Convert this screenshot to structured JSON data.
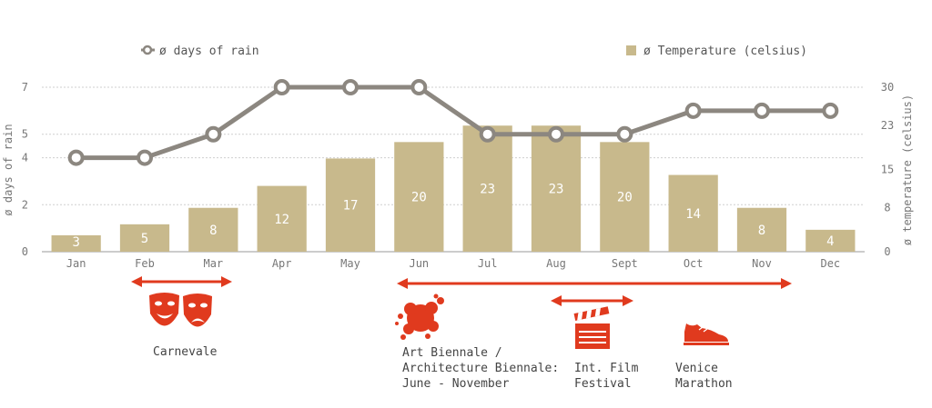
{
  "chart_data": {
    "type": "bar",
    "categories": [
      "Jan",
      "Feb",
      "Mar",
      "Apr",
      "May",
      "Jun",
      "Jul",
      "Aug",
      "Sept",
      "Oct",
      "Nov",
      "Dec"
    ],
    "series": [
      {
        "name": "ø Temperature (celsius)",
        "type": "bar",
        "axis": "right",
        "values": [
          3,
          5,
          8,
          12,
          17,
          20,
          23,
          23,
          20,
          14,
          8,
          4
        ]
      },
      {
        "name": "ø days of rain",
        "type": "line",
        "axis": "left",
        "values": [
          4,
          4,
          5,
          7,
          7,
          7,
          5,
          5,
          5,
          6,
          6,
          6
        ]
      }
    ],
    "ylabel": "ø days of rain",
    "y2label": "ø temperature (celsius)",
    "ylim": [
      0,
      7
    ],
    "y2lim": [
      0,
      30
    ],
    "yticks": [
      0,
      2,
      4,
      5,
      7
    ],
    "y2ticks": [
      0,
      8,
      15,
      23,
      30
    ],
    "grid": true,
    "legend": "top"
  },
  "legend": {
    "rain": "ø days of rain",
    "temp": "ø Temperature (celsius)"
  },
  "colors": {
    "bar": "#c8b98c",
    "line": "#8c8780",
    "accent": "#e03a1e",
    "grid": "#cfcfcf",
    "text": "#555555"
  },
  "events": [
    {
      "icon": "theater-masks-icon",
      "from": "Feb",
      "to": "Mar",
      "lines": [
        "Carnevale"
      ]
    },
    {
      "icon": "paint-splash-icon",
      "from": "Jun",
      "to": "Nov",
      "lines": [
        "Art Biennale /",
        "Architecture Biennale:",
        "June - November"
      ]
    },
    {
      "icon": "clapperboard-icon",
      "from": "Aug",
      "to": "Sept",
      "lines": [
        "Int. Film",
        "Festival"
      ]
    },
    {
      "icon": "running-shoe-icon",
      "lines": [
        "Venice",
        "Marathon"
      ]
    }
  ]
}
